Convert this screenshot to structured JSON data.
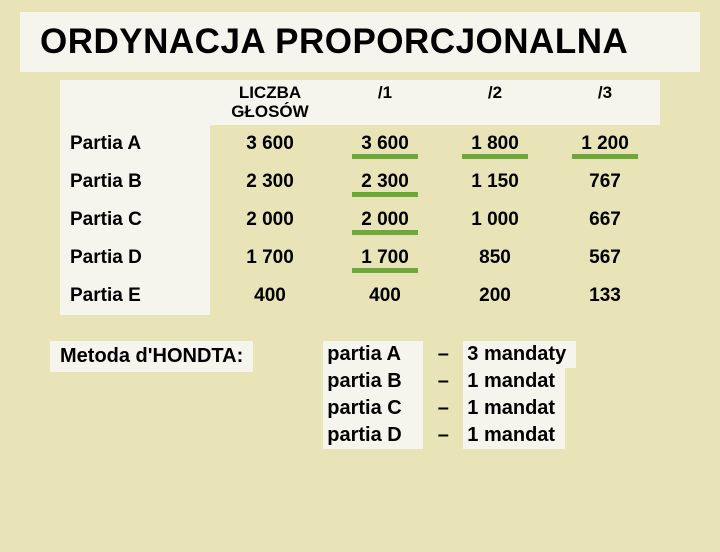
{
  "title": "ORDYNACJA PROPORCJONALNA",
  "table": {
    "headers": [
      "",
      "LICZBA GŁOSÓW",
      "/1",
      "/2",
      "/3"
    ],
    "rows": [
      {
        "label": "Partia A",
        "votes": "3 600",
        "d1": "3 600",
        "d2": "1 800",
        "d3": "1 200",
        "ul": {
          "d1": true,
          "d2": true,
          "d3": true
        }
      },
      {
        "label": "Partia B",
        "votes": "2 300",
        "d1": "2 300",
        "d2": "1 150",
        "d3": "767",
        "ul": {
          "d1": true,
          "d2": false,
          "d3": false
        }
      },
      {
        "label": "Partia C",
        "votes": "2 000",
        "d1": "2 000",
        "d2": "1 000",
        "d3": "667",
        "ul": {
          "d1": true,
          "d2": false,
          "d3": false
        }
      },
      {
        "label": "Partia D",
        "votes": "1 700",
        "d1": "1 700",
        "d2": "850",
        "d3": "567",
        "ul": {
          "d1": true,
          "d2": false,
          "d3": false
        }
      },
      {
        "label": "Partia E",
        "votes": "400",
        "d1": "400",
        "d2": "200",
        "d3": "133",
        "ul": {
          "d1": false,
          "d2": false,
          "d3": false
        }
      }
    ]
  },
  "method_label": "Metoda d'HONDTA:",
  "results": [
    {
      "party": "partia A",
      "dash": "–",
      "mandates": "3 mandaty"
    },
    {
      "party": "partia B",
      "dash": "–",
      "mandates": "1 mandat"
    },
    {
      "party": "partia C",
      "dash": "–",
      "mandates": "1 mandat"
    },
    {
      "party": "partia D",
      "dash": "–",
      "mandates": "1 mandat"
    }
  ],
  "colors": {
    "bg": "#e8e4b8",
    "highlight": "#f5f5ee",
    "underline": "#6fa83a",
    "text": "#000000"
  }
}
